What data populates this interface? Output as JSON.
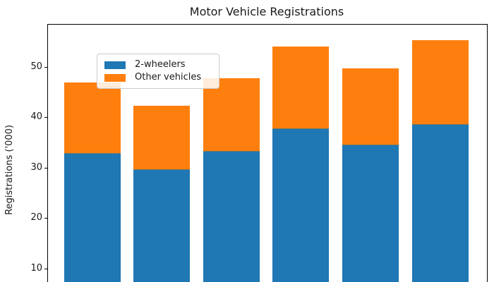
{
  "chart_data": {
    "type": "bar",
    "stacked": true,
    "title": "Motor Vehicle Registrations",
    "ylabel": "Registrations ('000)",
    "xlabel": "",
    "series": [
      {
        "name": "2-wheelers",
        "color": "#1f77b4",
        "values": [
          33.0,
          29.8,
          33.5,
          37.9,
          34.8,
          38.8
        ]
      },
      {
        "name": "Other vehicles",
        "color": "#ff7f0e",
        "values": [
          14.1,
          12.7,
          14.4,
          16.3,
          15.0,
          16.7
        ]
      }
    ],
    "totals": [
      47.1,
      42.5,
      47.9,
      54.2,
      49.8,
      55.5
    ],
    "yticks": [
      10,
      20,
      30,
      40,
      50
    ],
    "ylim_visible": [
      7.3,
      58.5
    ],
    "x_tick_labels_visible": false,
    "grid": false,
    "legend_position": "upper left",
    "background_color": "#ffffff",
    "axis_color": "#000000"
  }
}
